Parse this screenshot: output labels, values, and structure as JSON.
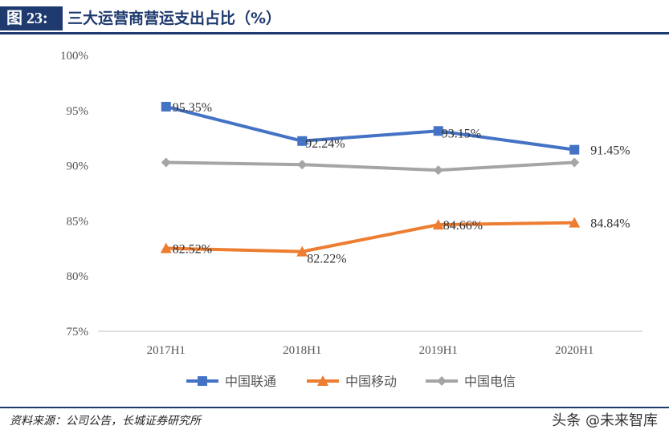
{
  "header": {
    "figure_label": "图 23:",
    "title": "三大运营商营运支出占比（%）"
  },
  "footer": {
    "source": "资料来源：公司公告，长城证券研究所",
    "watermark": "头条 @未来智库"
  },
  "chart_data": {
    "type": "line",
    "categories": [
      "2017H1",
      "2018H1",
      "2019H1",
      "2020H1"
    ],
    "ylim": [
      75,
      100
    ],
    "yticks": [
      75,
      80,
      85,
      90,
      95,
      100
    ],
    "ytick_labels": [
      "75%",
      "80%",
      "85%",
      "90%",
      "95%",
      "100%"
    ],
    "grid": false,
    "legend_position": "bottom",
    "series": [
      {
        "name": "中国联通",
        "values": [
          95.35,
          92.24,
          93.15,
          91.45
        ],
        "labels": [
          "95.35%",
          "92.24%",
          "93.15%",
          "91.45%"
        ],
        "color": "#4472c4",
        "marker": "square"
      },
      {
        "name": "中国移动",
        "values": [
          82.52,
          82.22,
          84.66,
          84.84
        ],
        "labels": [
          "82.52%",
          "82.22%",
          "84.66%",
          "84.84%"
        ],
        "color": "#ed7d31",
        "marker": "triangle"
      },
      {
        "name": "中国电信",
        "values": [
          90.3,
          90.1,
          89.6,
          90.3
        ],
        "labels": [],
        "color": "#a5a5a5",
        "marker": "diamond"
      }
    ]
  }
}
